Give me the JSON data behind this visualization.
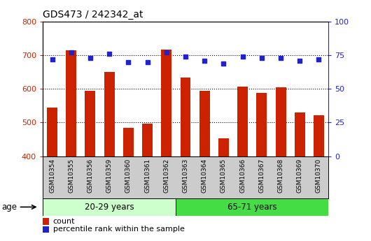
{
  "title": "GDS473 / 242342_at",
  "categories": [
    "GSM10354",
    "GSM10355",
    "GSM10356",
    "GSM10359",
    "GSM10360",
    "GSM10361",
    "GSM10362",
    "GSM10363",
    "GSM10364",
    "GSM10365",
    "GSM10366",
    "GSM10367",
    "GSM10368",
    "GSM10369",
    "GSM10370"
  ],
  "count_values": [
    545,
    715,
    595,
    650,
    484,
    496,
    717,
    633,
    595,
    453,
    607,
    588,
    604,
    531,
    521
  ],
  "percentile_values": [
    72,
    77,
    73,
    76,
    70,
    70,
    77,
    74,
    71,
    69,
    74,
    73,
    73,
    71,
    72
  ],
  "group1_label": "20-29 years",
  "group1_count": 7,
  "group2_label": "65-71 years",
  "group2_count": 8,
  "age_label": "age",
  "ylim_left": [
    400,
    800
  ],
  "ylim_right": [
    0,
    100
  ],
  "yticks_left": [
    400,
    500,
    600,
    700,
    800
  ],
  "yticks_right": [
    0,
    25,
    50,
    75,
    100
  ],
  "bar_color": "#cc2200",
  "dot_color": "#2222cc",
  "group1_color_light": "#ccffcc",
  "group2_color": "#44dd44",
  "grid_color": "#000000",
  "bg_color": "#cccccc",
  "legend_count_color": "#cc2200",
  "legend_pct_color": "#2222cc"
}
